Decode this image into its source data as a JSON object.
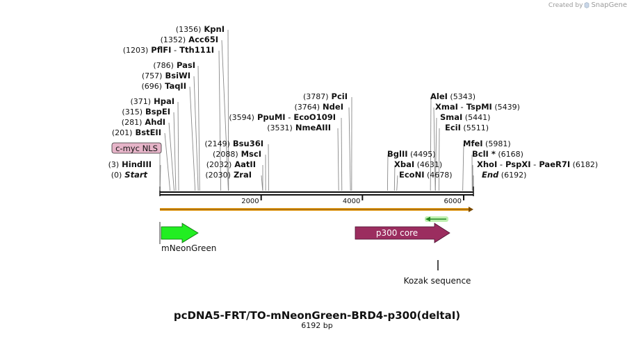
{
  "credit": {
    "prefix": "Created by",
    "brand": "SnapGene"
  },
  "title": "pcDNA5-FRT/TO-mNeonGreen-BRD4-p300(deltaI)",
  "length_label": "6192 bp",
  "total_length": 6192,
  "ticks": [
    {
      "pos": 2000,
      "label": "2000"
    },
    {
      "pos": 4000,
      "label": "4000"
    },
    {
      "pos": 6000,
      "label": "6000"
    }
  ],
  "left_labels": [
    {
      "parts": [
        {
          "t": "(1356)",
          "c": "pos"
        },
        {
          "t": "KpnI",
          "c": "enz"
        }
      ],
      "site": 1356
    },
    {
      "parts": [
        {
          "t": "(1352)",
          "c": "pos"
        },
        {
          "t": "Acc65I",
          "c": "enz"
        }
      ],
      "site": 1352
    },
    {
      "parts": [
        {
          "t": "(1203)",
          "c": "pos"
        },
        {
          "t": "PflFI",
          "c": "enz"
        },
        {
          "t": "-",
          "c": "sep"
        },
        {
          "t": "Tth111I",
          "c": "enz"
        }
      ],
      "site": 1203
    },
    {
      "parts": [
        {
          "t": "(786)",
          "c": "pos"
        },
        {
          "t": "PasI",
          "c": "enz"
        }
      ],
      "site": 786
    },
    {
      "parts": [
        {
          "t": "(757)",
          "c": "pos"
        },
        {
          "t": "BsiWI",
          "c": "enz"
        }
      ],
      "site": 757
    },
    {
      "parts": [
        {
          "t": "(696)",
          "c": "pos"
        },
        {
          "t": "TaqII",
          "c": "enz"
        }
      ],
      "site": 696
    },
    {
      "parts": [
        {
          "t": "(371)",
          "c": "pos"
        },
        {
          "t": "HpaI",
          "c": "enz"
        }
      ],
      "site": 371
    },
    {
      "parts": [
        {
          "t": "(315)",
          "c": "pos"
        },
        {
          "t": "BspEI",
          "c": "enz"
        }
      ],
      "site": 315
    },
    {
      "parts": [
        {
          "t": "(281)",
          "c": "pos"
        },
        {
          "t": "AhdI",
          "c": "enz"
        }
      ],
      "site": 281
    },
    {
      "parts": [
        {
          "t": "(201)",
          "c": "pos"
        },
        {
          "t": "BstEII",
          "c": "enz"
        }
      ],
      "site": 201
    },
    {
      "parts": [
        {
          "t": "(3)",
          "c": "pos"
        },
        {
          "t": "HindIII",
          "c": "enz"
        }
      ],
      "site": 3
    },
    {
      "parts": [
        {
          "t": "(0)",
          "c": "pos"
        },
        {
          "t": "Start",
          "c": "ital"
        }
      ],
      "site": 0
    }
  ],
  "mid_labels": [
    {
      "parts": [
        {
          "t": "(2149)",
          "c": "pos"
        },
        {
          "t": "Bsu36I",
          "c": "enz"
        }
      ],
      "site": 2149
    },
    {
      "parts": [
        {
          "t": "(2088)",
          "c": "pos"
        },
        {
          "t": "MscI",
          "c": "enz"
        }
      ],
      "site": 2088
    },
    {
      "parts": [
        {
          "t": "(2032)",
          "c": "pos"
        },
        {
          "t": "AatII",
          "c": "enz"
        }
      ],
      "site": 2032
    },
    {
      "parts": [
        {
          "t": "(2030)",
          "c": "pos"
        },
        {
          "t": "ZraI",
          "c": "enz"
        }
      ],
      "site": 2030
    },
    {
      "parts": [
        {
          "t": "(3787)",
          "c": "pos"
        },
        {
          "t": "PciI",
          "c": "enz"
        }
      ],
      "site": 3787
    },
    {
      "parts": [
        {
          "t": "(3764)",
          "c": "pos"
        },
        {
          "t": "NdeI",
          "c": "enz"
        }
      ],
      "site": 3764
    },
    {
      "parts": [
        {
          "t": "(3594)",
          "c": "pos"
        },
        {
          "t": "PpuMI",
          "c": "enz"
        },
        {
          "t": "-",
          "c": "sep"
        },
        {
          "t": "EcoO109I",
          "c": "enz"
        }
      ],
      "site": 3594
    },
    {
      "parts": [
        {
          "t": "(3531)",
          "c": "pos"
        },
        {
          "t": "NmeAIII",
          "c": "enz"
        }
      ],
      "site": 3531
    }
  ],
  "right_labels": [
    {
      "parts": [
        {
          "t": "AleI",
          "c": "enz"
        },
        {
          "t": "(5343)",
          "c": "pos"
        }
      ],
      "site": 5343
    },
    {
      "parts": [
        {
          "t": "XmaI",
          "c": "enz"
        },
        {
          "t": "-",
          "c": "sep"
        },
        {
          "t": "TspMI",
          "c": "enz"
        },
        {
          "t": "(5439)",
          "c": "pos"
        }
      ],
      "site": 5439
    },
    {
      "parts": [
        {
          "t": "SmaI",
          "c": "enz"
        },
        {
          "t": "(5441)",
          "c": "pos"
        }
      ],
      "site": 5441
    },
    {
      "parts": [
        {
          "t": "EciI",
          "c": "enz"
        },
        {
          "t": "(5511)",
          "c": "pos"
        }
      ],
      "site": 5511
    },
    {
      "parts": [
        {
          "t": "MfeI",
          "c": "enz"
        },
        {
          "t": "(5981)",
          "c": "pos"
        }
      ],
      "site": 5981
    },
    {
      "parts": [
        {
          "t": "BglII",
          "c": "enz"
        },
        {
          "t": "(4495)",
          "c": "pos"
        }
      ],
      "site": 4495
    },
    {
      "parts": [
        {
          "t": "BclI",
          "c": "enz"
        },
        {
          "t": "*",
          "c": "enz"
        },
        {
          "t": "(6168)",
          "c": "pos"
        }
      ],
      "site": 6168
    },
    {
      "parts": [
        {
          "t": "XbaI",
          "c": "enz"
        },
        {
          "t": "(4631)",
          "c": "pos"
        }
      ],
      "site": 4631
    },
    {
      "parts": [
        {
          "t": "XhoI",
          "c": "enz"
        },
        {
          "t": "-",
          "c": "sep"
        },
        {
          "t": "PspXI",
          "c": "enz"
        },
        {
          "t": "-",
          "c": "sep"
        },
        {
          "t": "PaeR7I",
          "c": "enz"
        },
        {
          "t": "(6182)",
          "c": "pos"
        }
      ],
      "site": 6182
    },
    {
      "parts": [
        {
          "t": "EcoNI",
          "c": "enz"
        },
        {
          "t": "(4678)",
          "c": "pos"
        }
      ],
      "site": 4678
    },
    {
      "parts": [
        {
          "t": "End",
          "c": "ital"
        },
        {
          "t": "(6192)",
          "c": "pos"
        }
      ],
      "site": 6192
    }
  ],
  "features": {
    "cmyc": {
      "label": "c-myc NLS",
      "color": "#e6b4c8"
    },
    "mneongreen": {
      "label": "mNeonGreen",
      "color": "#22ee22"
    },
    "p300": {
      "label": "p300 core",
      "color": "#9b2d5f"
    },
    "kozak": {
      "label": "Kozak sequence"
    },
    "orf_color": "#e8a020",
    "small_arrow_color": "#33cc33"
  }
}
